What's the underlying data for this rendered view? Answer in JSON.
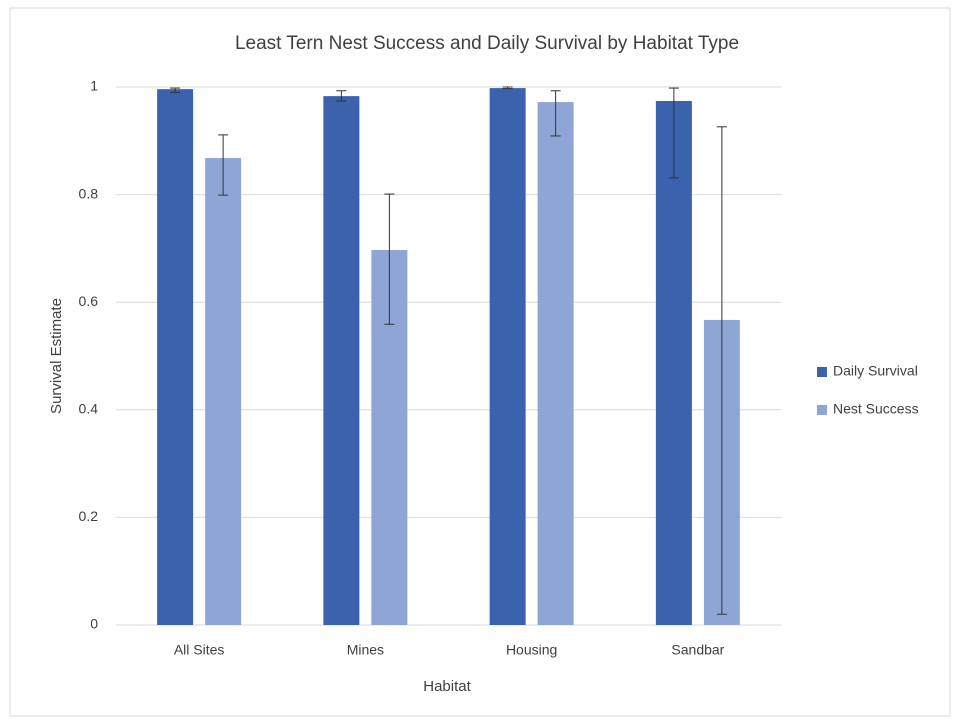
{
  "chart_data": {
    "type": "bar",
    "title": "Least Tern Nest Success and Daily Survival by Habitat Type",
    "x_label": "Habitat",
    "y_label": "Survival Estimate",
    "categories": [
      "All Sites",
      "Mines",
      "Housing",
      "Sandbar"
    ],
    "series": [
      {
        "name": "Daily Survival",
        "color": "#3a62ad",
        "values": [
          0.996,
          0.983,
          0.998,
          0.974
        ],
        "lower": [
          0.99,
          0.974,
          0.997,
          0.831
        ],
        "upper": [
          0.998,
          0.993,
          1.0,
          0.998
        ]
      },
      {
        "name": "Nest Success",
        "color": "#8ea5d6",
        "values": [
          0.868,
          0.697,
          0.972,
          0.567
        ],
        "lower": [
          0.799,
          0.559,
          0.909,
          0.02
        ],
        "upper": [
          0.911,
          0.801,
          0.993,
          0.926
        ]
      }
    ],
    "ylim": [
      0,
      1
    ],
    "yticks": [
      0,
      0.2,
      0.4,
      0.6,
      0.8,
      1
    ],
    "grid": true,
    "legend": "right"
  }
}
